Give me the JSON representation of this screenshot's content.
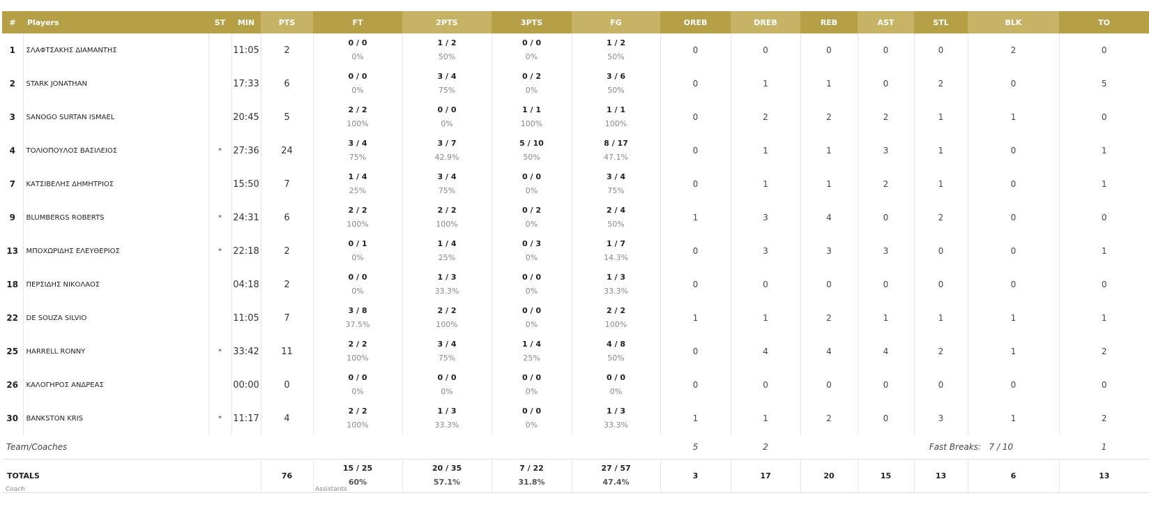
{
  "header": {
    "num": "#",
    "players": "Players",
    "st": "ST",
    "min": "MIN",
    "pts": "PTS",
    "ft": "FT",
    "pts2": "2PTS",
    "pts3": "3PTS",
    "fg": "FG",
    "oreb": "OREB",
    "dreb": "DREB",
    "reb": "REB",
    "ast": "AST",
    "stl": "STL",
    "blk": "BLK",
    "to": "TO"
  },
  "players": [
    {
      "num": "1",
      "name": "ΣΛΑΦΤΣΑΚΗΣ ΔΙΑΜΑΝΤΗΣ",
      "st": "",
      "min": "11:05",
      "pts": "2",
      "ft": "0 / 0",
      "ft_pct": "0%",
      "p2": "1 / 2",
      "p2_pct": "50%",
      "p3": "0 / 0",
      "p3_pct": "0%",
      "fg": "1 / 2",
      "fg_pct": "50%",
      "oreb": "0",
      "dreb": "0",
      "reb": "0",
      "ast": "0",
      "stl": "0",
      "blk": "2",
      "to": "0"
    },
    {
      "num": "2",
      "name": "STARK JONATHAN",
      "st": "",
      "min": "17:33",
      "pts": "6",
      "ft": "0 / 0",
      "ft_pct": "0%",
      "p2": "3 / 4",
      "p2_pct": "75%",
      "p3": "0 / 2",
      "p3_pct": "0%",
      "fg": "3 / 6",
      "fg_pct": "50%",
      "oreb": "0",
      "dreb": "1",
      "reb": "1",
      "ast": "0",
      "stl": "2",
      "blk": "0",
      "to": "5"
    },
    {
      "num": "3",
      "name": "SANOGO SURTAN ISMAEL",
      "st": "",
      "min": "20:45",
      "pts": "5",
      "ft": "2 / 2",
      "ft_pct": "100%",
      "p2": "0 / 0",
      "p2_pct": "0%",
      "p3": "1 / 1",
      "p3_pct": "100%",
      "fg": "1 / 1",
      "fg_pct": "100%",
      "oreb": "0",
      "dreb": "2",
      "reb": "2",
      "ast": "2",
      "stl": "1",
      "blk": "1",
      "to": "0"
    },
    {
      "num": "4",
      "name": "ΤΟΛΙΟΠΟΥΛΟΣ ΒΑΣΙΛΕΙΟΣ",
      "st": "*",
      "min": "27:36",
      "pts": "24",
      "ft": "3 / 4",
      "ft_pct": "75%",
      "p2": "3 / 7",
      "p2_pct": "42.9%",
      "p3": "5 / 10",
      "p3_pct": "50%",
      "fg": "8 / 17",
      "fg_pct": "47.1%",
      "oreb": "0",
      "dreb": "1",
      "reb": "1",
      "ast": "3",
      "stl": "1",
      "blk": "0",
      "to": "1"
    },
    {
      "num": "7",
      "name": "ΚΑΤΣΙΒΕΛΗΣ ΔΗΜΗΤΡΙΟΣ",
      "st": "",
      "min": "15:50",
      "pts": "7",
      "ft": "1 / 4",
      "ft_pct": "25%",
      "p2": "3 / 4",
      "p2_pct": "75%",
      "p3": "0 / 0",
      "p3_pct": "0%",
      "fg": "3 / 4",
      "fg_pct": "75%",
      "oreb": "0",
      "dreb": "1",
      "reb": "1",
      "ast": "2",
      "stl": "1",
      "blk": "0",
      "to": "1"
    },
    {
      "num": "9",
      "name": "BLUMBERGS ROBERTS",
      "st": "*",
      "min": "24:31",
      "pts": "6",
      "ft": "2 / 2",
      "ft_pct": "100%",
      "p2": "2 / 2",
      "p2_pct": "100%",
      "p3": "0 / 2",
      "p3_pct": "0%",
      "fg": "2 / 4",
      "fg_pct": "50%",
      "oreb": "1",
      "dreb": "3",
      "reb": "4",
      "ast": "0",
      "stl": "2",
      "blk": "0",
      "to": "0"
    },
    {
      "num": "13",
      "name": "ΜΠΟΧΩΡΙΔΗΣ ΕΛΕΥΘΕΡΙΟΣ",
      "st": "*",
      "min": "22:18",
      "pts": "2",
      "ft": "0 / 1",
      "ft_pct": "0%",
      "p2": "1 / 4",
      "p2_pct": "25%",
      "p3": "0 / 3",
      "p3_pct": "0%",
      "fg": "1 / 7",
      "fg_pct": "14.3%",
      "oreb": "0",
      "dreb": "3",
      "reb": "3",
      "ast": "3",
      "stl": "0",
      "blk": "0",
      "to": "1"
    },
    {
      "num": "18",
      "name": "ΠΕΡΣΙΔΗΣ ΝΙΚΟΛΑΟΣ",
      "st": "",
      "min": "04:18",
      "pts": "2",
      "ft": "0 / 0",
      "ft_pct": "0%",
      "p2": "1 / 3",
      "p2_pct": "33.3%",
      "p3": "0 / 0",
      "p3_pct": "0%",
      "fg": "1 / 3",
      "fg_pct": "33.3%",
      "oreb": "0",
      "dreb": "0",
      "reb": "0",
      "ast": "0",
      "stl": "0",
      "blk": "0",
      "to": "0"
    },
    {
      "num": "22",
      "name": "DE SOUZA SILVIO",
      "st": "",
      "min": "11:05",
      "pts": "7",
      "ft": "3 / 8",
      "ft_pct": "37.5%",
      "p2": "2 / 2",
      "p2_pct": "100%",
      "p3": "0 / 0",
      "p3_pct": "0%",
      "fg": "2 / 2",
      "fg_pct": "100%",
      "oreb": "1",
      "dreb": "1",
      "reb": "2",
      "ast": "1",
      "stl": "1",
      "blk": "1",
      "to": "1"
    },
    {
      "num": "25",
      "name": "HARRELL RONNY",
      "st": "*",
      "min": "33:42",
      "pts": "11",
      "ft": "2 / 2",
      "ft_pct": "100%",
      "p2": "3 / 4",
      "p2_pct": "75%",
      "p3": "1 / 4",
      "p3_pct": "25%",
      "fg": "4 / 8",
      "fg_pct": "50%",
      "oreb": "0",
      "dreb": "4",
      "reb": "4",
      "ast": "4",
      "stl": "2",
      "blk": "1",
      "to": "2"
    },
    {
      "num": "26",
      "name": "ΚΑΛΟΓΗΡΟΣ ΑΝΔΡΕΑΣ",
      "st": "",
      "min": "00:00",
      "pts": "0",
      "ft": "0 / 0",
      "ft_pct": "0%",
      "p2": "0 / 0",
      "p2_pct": "0%",
      "p3": "0 / 0",
      "p3_pct": "0%",
      "fg": "0 / 0",
      "fg_pct": "0%",
      "oreb": "0",
      "dreb": "0",
      "reb": "0",
      "ast": "0",
      "stl": "0",
      "blk": "0",
      "to": "0"
    },
    {
      "num": "30",
      "name": "BANKSTON KRIS",
      "st": "*",
      "min": "11:17",
      "pts": "4",
      "ft": "2 / 2",
      "ft_pct": "100%",
      "p2": "1 / 3",
      "p2_pct": "33.3%",
      "p3": "0 / 0",
      "p3_pct": "0%",
      "fg": "1 / 3",
      "fg_pct": "33.3%",
      "oreb": "1",
      "dreb": "1",
      "reb": "2",
      "ast": "0",
      "stl": "3",
      "blk": "1",
      "to": "2"
    }
  ],
  "team": {
    "label": "Team/Coaches",
    "oreb": "5",
    "dreb": "2",
    "fast_breaks_label": "Fast Breaks:",
    "fast_breaks_value": "7 / 10",
    "to": "1"
  },
  "totals": {
    "label": "TOTALS",
    "pts": "76",
    "ft": "15 / 25",
    "ft_pct": "60%",
    "p2": "20 / 35",
    "p2_pct": "57.1%",
    "p3": "7 / 22",
    "p3_pct": "31.8%",
    "fg": "27 / 57",
    "fg_pct": "47.4%",
    "oreb": "3",
    "dreb": "17",
    "reb": "20",
    "ast": "15",
    "stl": "13",
    "blk": "6",
    "to": "13"
  },
  "staff": {
    "coach_label": "Coach",
    "assistants_label": "Assistants"
  },
  "colors": {
    "header_dark": "#b59f47",
    "header_mid": "#c6b366",
    "header_light": "#cfbc72"
  }
}
